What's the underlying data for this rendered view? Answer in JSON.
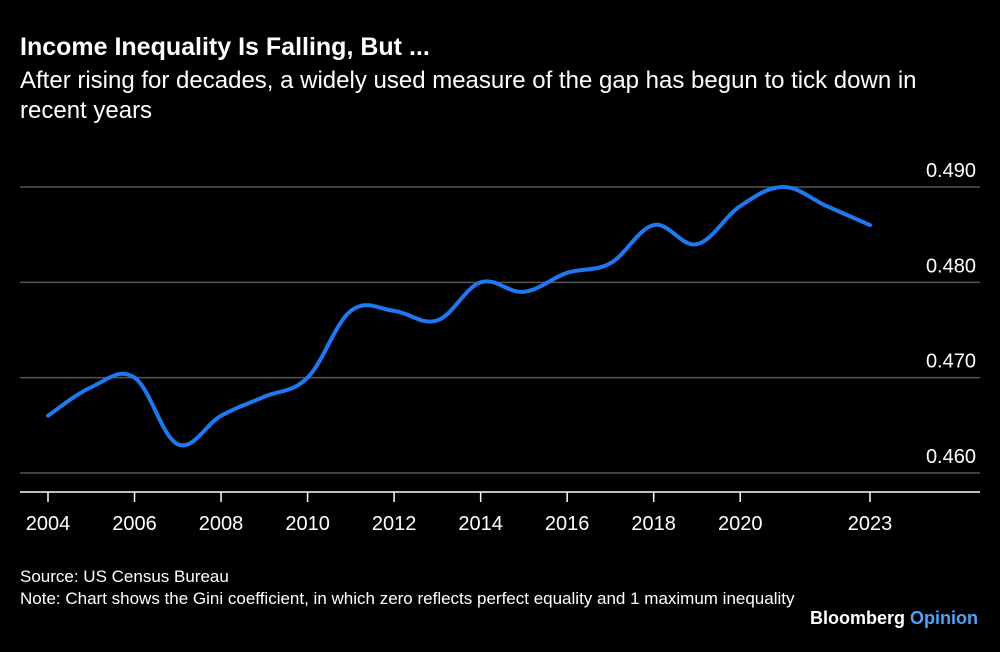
{
  "header": {
    "title": "Income Inequality Is Falling, But ...",
    "subtitle": "After rising for decades, a widely used measure of the gap has begun to tick down in recent years"
  },
  "chart_data": {
    "type": "line",
    "title": "Income Inequality Is Falling, But ...",
    "subtitle": "After rising for decades, a widely used measure of the gap has begun to tick down in recent years",
    "xlabel": "",
    "ylabel": "",
    "x": [
      2004,
      2005,
      2006,
      2007,
      2008,
      2009,
      2010,
      2011,
      2012,
      2013,
      2014,
      2015,
      2016,
      2017,
      2018,
      2019,
      2020,
      2021,
      2022,
      2023
    ],
    "series": [
      {
        "values": [
          0.466,
          0.469,
          0.47,
          0.463,
          0.466,
          0.468,
          0.47,
          0.477,
          0.477,
          0.476,
          0.48,
          0.479,
          0.481,
          0.482,
          0.486,
          0.484,
          0.488,
          0.49,
          0.488,
          0.486
        ]
      }
    ],
    "xlim": [
      2004,
      2023
    ],
    "ylim": [
      0.458,
      0.49
    ],
    "x_ticks": [
      "2004",
      "2006",
      "2008",
      "2010",
      "2012",
      "2014",
      "2016",
      "2018",
      "2020",
      "2023"
    ],
    "y_ticks": [
      "0.460",
      "0.470",
      "0.480",
      "0.490"
    ],
    "grid": true,
    "legend": "none",
    "line_color": "#1e78f0",
    "grid_color": "#555555",
    "axis_color": "#ffffff"
  },
  "footer": {
    "source": "Source: US Census Bureau",
    "note": "Note: Chart shows the Gini coefficient, in which zero reflects perfect equality and 1 maximum inequality",
    "brand_part1": "Bloomberg",
    "brand_part2": "Opinion"
  }
}
